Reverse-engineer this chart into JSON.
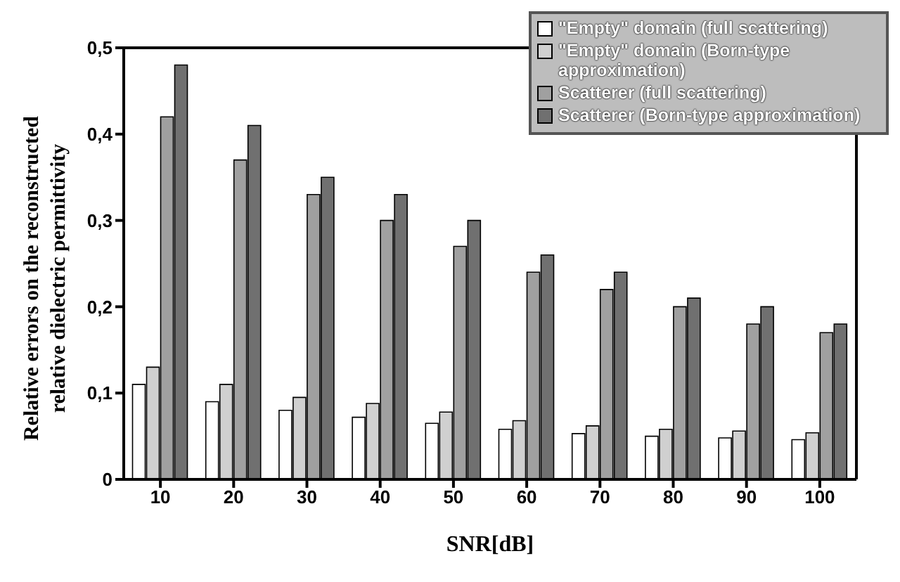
{
  "chart_data": {
    "type": "bar",
    "xlabel": "SNR[dB]",
    "ylabel": "Relative errors on the reconstructed relative dielectric permittivity",
    "categories": [
      "10",
      "20",
      "30",
      "40",
      "50",
      "60",
      "70",
      "80",
      "90",
      "100"
    ],
    "series": [
      {
        "name": "\"Empty\" domain (full scattering)",
        "color": "#ffffff",
        "values": [
          0.11,
          0.09,
          0.08,
          0.072,
          0.065,
          0.058,
          0.053,
          0.05,
          0.048,
          0.046
        ]
      },
      {
        "name": "\"Empty\" domain (Born-type approximation)",
        "color": "#d0d0d0",
        "values": [
          0.13,
          0.11,
          0.095,
          0.088,
          0.078,
          0.068,
          0.062,
          0.058,
          0.056,
          0.054
        ]
      },
      {
        "name": "Scatterer (full scattering)",
        "color": "#a0a0a0",
        "values": [
          0.42,
          0.37,
          0.33,
          0.3,
          0.27,
          0.24,
          0.22,
          0.2,
          0.18,
          0.17
        ]
      },
      {
        "name": "Scatterer (Born-type approximation)",
        "color": "#707070",
        "values": [
          0.48,
          0.41,
          0.35,
          0.33,
          0.3,
          0.26,
          0.24,
          0.21,
          0.2,
          0.18
        ]
      }
    ],
    "ylim": [
      0,
      0.5
    ],
    "yticks": [
      0,
      {
        "value": 0.1,
        "label": "0,1"
      },
      {
        "value": 0.2,
        "label": "0,2"
      },
      {
        "value": 0.3,
        "label": "0,3"
      },
      {
        "value": 0.4,
        "label": "0,4"
      },
      {
        "value": 0.5,
        "label": "0,5"
      }
    ],
    "legend": "top right"
  }
}
